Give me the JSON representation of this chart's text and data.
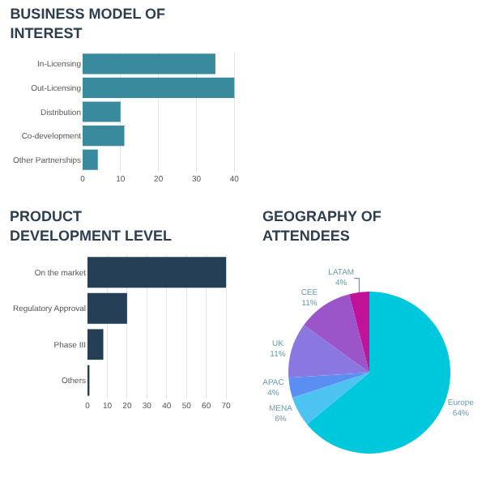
{
  "chart_data": [
    {
      "type": "bar",
      "title": "BUSINESS MODEL OF INTEREST",
      "orientation": "horizontal",
      "categories": [
        "In-Licensing",
        "Out-Licensing",
        "Distribution",
        "Co-development",
        "Other Partnerships"
      ],
      "values": [
        35,
        40,
        10,
        11,
        4
      ],
      "color": "#3a8a9e",
      "xlim": [
        0,
        41
      ],
      "xticks": [
        0,
        10,
        20,
        30,
        40
      ],
      "grid": "x",
      "legend": false
    },
    {
      "type": "bar",
      "title": "PRODUCT DEVELOPMENT LEVEL",
      "orientation": "horizontal",
      "categories": [
        "On the market",
        "Regulatory Approval",
        "Phase III",
        "Others"
      ],
      "values": [
        70,
        20,
        8,
        1
      ],
      "color": "#253f57",
      "xlim": [
        0,
        72
      ],
      "xticks": [
        0,
        10,
        20,
        30,
        40,
        50,
        60,
        70
      ],
      "grid": "x",
      "legend": false
    },
    {
      "type": "pie",
      "title": "GEOGRAPHY OF ATTENDEES",
      "categories": [
        "Europe",
        "MENA",
        "APAC",
        "UK",
        "CEE",
        "LATAM"
      ],
      "values": [
        64,
        6,
        4,
        11,
        11,
        4
      ],
      "value_labels": [
        "64%",
        "6%",
        "4%",
        "11%",
        "11%",
        "4%"
      ],
      "colors": [
        "#00c8dc",
        "#4cc3f0",
        "#5a8ef0",
        "#8a78e0",
        "#9b55c8",
        "#c0139a"
      ],
      "legend": false
    }
  ]
}
